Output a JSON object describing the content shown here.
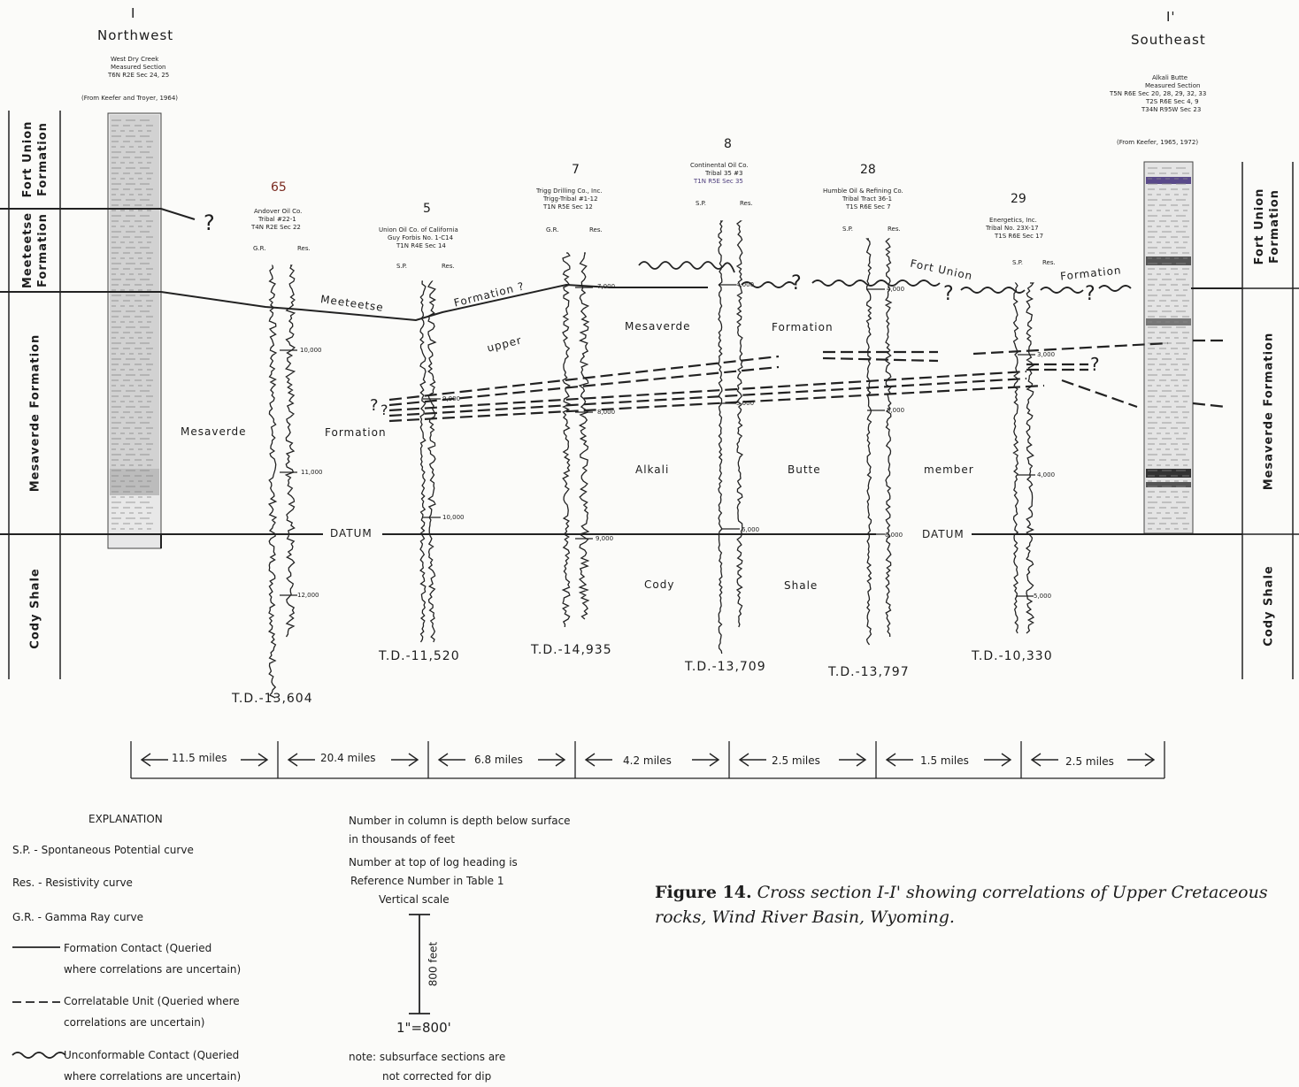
{
  "header_left": {
    "ref": "I",
    "direction": "Northwest",
    "well": "West Dry Creek",
    "well2": "Measured Section",
    "location": "T6N R2E Sec 24, 25",
    "source": "(From Keefer and Troyer, 1964)"
  },
  "header_right": {
    "ref": "I'",
    "direction": "Southeast",
    "well": "Alkali Butte",
    "well2": "Measured Section",
    "loc1": "T5N R6E Sec 20, 28, 29, 32, 33",
    "loc2": "T2S R6E Sec 4, 9",
    "loc3": "T34N R95W Sec 23",
    "source": "(From Keefer, 1965, 1972)"
  },
  "formations_left": [
    "Fort Union Formation",
    "Meeteetse Formation",
    "Mesaverde Formation",
    "Cody Shale"
  ],
  "formations_right": [
    "Fort Union Formation",
    "Mesaverde Formation",
    "Cody Shale"
  ],
  "wells": [
    {
      "number": "65",
      "operator": "Andover Oil Co.",
      "name": "Tribal #22-1",
      "location": "T4N R2E Sec 22",
      "curve1": "G.R.",
      "curve2": "Res.",
      "depths": [
        "10,000",
        "11,000",
        "12,000"
      ],
      "td": "T.D.-13,604"
    },
    {
      "number": "5",
      "operator": "Union Oil Co. of California",
      "name": "Guy Forbis No. 1-C14",
      "location": "T1N R4E Sec 14",
      "curve1": "S.P.",
      "curve2": "Res.",
      "depths": [
        "9,000",
        "10,000"
      ],
      "td": "T.D.-11,520"
    },
    {
      "number": "7",
      "operator": "Trigg Drilling Co., Inc.",
      "name": "Trigg-Tribal #1-12",
      "location": "T1N R5E Sec 12",
      "curve1": "G.R.",
      "curve2": "Res.",
      "depths": [
        "7,000",
        "8,000",
        "9,000"
      ],
      "td": "T.D.-14,935"
    },
    {
      "number": "8",
      "operator": "Continental Oil Co.",
      "name": "Tribal 35 #3",
      "location": "T1N R5E Sec 35",
      "curve1": "S.P.",
      "curve2": "Res.",
      "depths": [
        "4,000",
        "5,000",
        "6,000"
      ],
      "td": "T.D.-13,709"
    },
    {
      "number": "28",
      "operator": "Humble Oil & Refining Co.",
      "name": "Tribal Tract 36-1",
      "location": "T1S R6E Sec 7",
      "curve1": "S.P.",
      "curve2": "Res.",
      "depths": [
        "4,000",
        "5,000",
        "6,000"
      ],
      "td": "T.D.-13,797"
    },
    {
      "number": "29",
      "operator": "Energetics, Inc.",
      "name": "Tribal No. 23X-17",
      "location": "T1S R6E Sec 17",
      "curve1": "S.P.",
      "curve2": "Res.",
      "depths": [
        "3,000",
        "4,000",
        "5,000"
      ],
      "td": "T.D.-10,330"
    }
  ],
  "section_labels": {
    "meeteetse": "Meeteetse",
    "formation_q": "Formation ?",
    "mesaverde_upper": "Mesaverde",
    "formation_upper": "Formation",
    "upper": "upper",
    "mesaverde_lower": "Mesaverde",
    "formation_lower": "Formation",
    "alkali": "Alkali",
    "butte": "Butte",
    "member": "member",
    "fort_union": "Fort Union",
    "fu_formation": "Formation",
    "datum": "DATUM",
    "cody": "Cody",
    "shale": "Shale",
    "q": "?"
  },
  "distances": [
    "11.5 miles",
    "20.4 miles",
    "6.8 miles",
    "4.2 miles",
    "2.5 miles",
    "1.5 miles",
    "2.5 miles"
  ],
  "explanation": {
    "title": "EXPLANATION",
    "sp": "S.P. - Spontaneous Potential curve",
    "res": "Res. - Resistivity curve",
    "gr": "G.R. - Gamma Ray curve",
    "contact1": "Formation Contact (Queried",
    "contact2": "where correlations are uncertain)",
    "unit1": "Correlatable Unit (Queried where",
    "unit2": "correlations are uncertain)",
    "uncon1": "Unconformable Contact (Queried",
    "uncon2": "where correlations are uncertain)"
  },
  "notes": {
    "n1": "Number in column is depth below surface",
    "n2": "in thousands of feet",
    "n3": "Number at top of log heading is",
    "n4": "Reference Number in Table 1",
    "n5": "Vertical scale",
    "scale_feet": "800 feet",
    "scale_ratio": "1\"=800'",
    "n6": "note: subsurface sections are",
    "n7": "not corrected for dip"
  },
  "caption": {
    "label": "Figure 14.",
    "text": "Cross section I-I' showing correlations of Upper Cretaceous rocks, Wind River Basin, Wyoming."
  }
}
